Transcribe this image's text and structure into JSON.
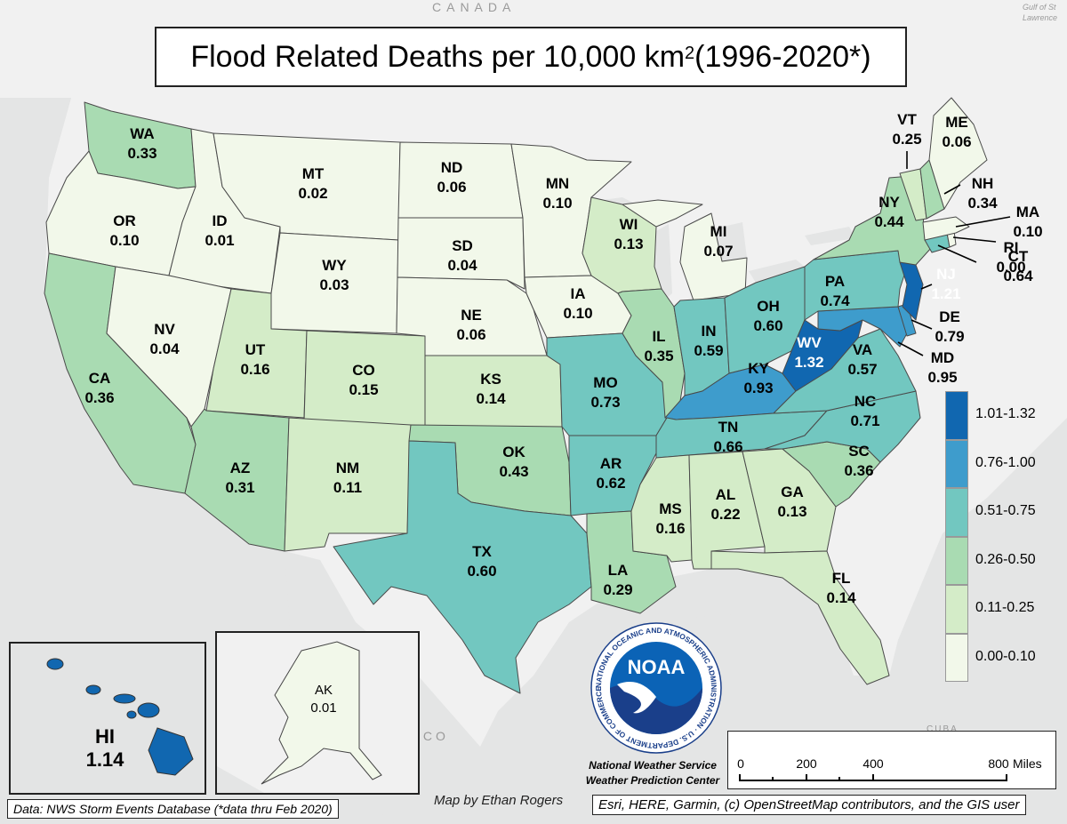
{
  "title": {
    "main": "Flood Related Deaths per 10,000 km",
    "superscript": "2",
    "period": " (1996-2020*)"
  },
  "background_labels": {
    "canada": "CANADA",
    "mexico_fragment": "ICO",
    "cuba": "CUBA",
    "gulf_st_lawrence": "Gulf of St Lawrence"
  },
  "colors": {
    "class_0": "#f2f8ea",
    "class_1": "#d4ecc8",
    "class_2": "#a9dbb2",
    "class_3": "#72c7c0",
    "class_4": "#3e9ccc",
    "class_5": "#1167b0",
    "land_bg": "#f5f5f5",
    "water_bg": "#e4e5e5"
  },
  "legend": [
    {
      "label": "1.01-1.32",
      "color": "#1167b0"
    },
    {
      "label": "0.76-1.00",
      "color": "#3e9ccc"
    },
    {
      "label": "0.51-0.75",
      "color": "#72c7c0"
    },
    {
      "label": "0.26-0.50",
      "color": "#a9dbb2"
    },
    {
      "label": "0.11-0.25",
      "color": "#d4ecc8"
    },
    {
      "label": "0.00-0.10",
      "color": "#f2f8ea"
    }
  ],
  "states": [
    {
      "abbr": "WA",
      "value": "0.33"
    },
    {
      "abbr": "OR",
      "value": "0.10"
    },
    {
      "abbr": "CA",
      "value": "0.36"
    },
    {
      "abbr": "ID",
      "value": "0.01"
    },
    {
      "abbr": "NV",
      "value": "0.04"
    },
    {
      "abbr": "MT",
      "value": "0.02"
    },
    {
      "abbr": "WY",
      "value": "0.03"
    },
    {
      "abbr": "UT",
      "value": "0.16"
    },
    {
      "abbr": "AZ",
      "value": "0.31"
    },
    {
      "abbr": "CO",
      "value": "0.15"
    },
    {
      "abbr": "NM",
      "value": "0.11"
    },
    {
      "abbr": "ND",
      "value": "0.06"
    },
    {
      "abbr": "SD",
      "value": "0.04"
    },
    {
      "abbr": "NE",
      "value": "0.06"
    },
    {
      "abbr": "KS",
      "value": "0.14"
    },
    {
      "abbr": "OK",
      "value": "0.43"
    },
    {
      "abbr": "TX",
      "value": "0.60"
    },
    {
      "abbr": "MN",
      "value": "0.10"
    },
    {
      "abbr": "IA",
      "value": "0.10"
    },
    {
      "abbr": "MO",
      "value": "0.73"
    },
    {
      "abbr": "AR",
      "value": "0.62"
    },
    {
      "abbr": "LA",
      "value": "0.29"
    },
    {
      "abbr": "WI",
      "value": "0.13"
    },
    {
      "abbr": "IL",
      "value": "0.35"
    },
    {
      "abbr": "MI",
      "value": "0.07"
    },
    {
      "abbr": "IN",
      "value": "0.59"
    },
    {
      "abbr": "OH",
      "value": "0.60"
    },
    {
      "abbr": "KY",
      "value": "0.93"
    },
    {
      "abbr": "TN",
      "value": "0.66"
    },
    {
      "abbr": "MS",
      "value": "0.16"
    },
    {
      "abbr": "AL",
      "value": "0.22"
    },
    {
      "abbr": "GA",
      "value": "0.13"
    },
    {
      "abbr": "FL",
      "value": "0.14"
    },
    {
      "abbr": "SC",
      "value": "0.36"
    },
    {
      "abbr": "NC",
      "value": "0.71"
    },
    {
      "abbr": "VA",
      "value": "0.57"
    },
    {
      "abbr": "WV",
      "value": "1.32"
    },
    {
      "abbr": "MD",
      "value": "0.95"
    },
    {
      "abbr": "DE",
      "value": "0.79"
    },
    {
      "abbr": "PA",
      "value": "0.74"
    },
    {
      "abbr": "NJ",
      "value": "1.21"
    },
    {
      "abbr": "NY",
      "value": "0.44"
    },
    {
      "abbr": "CT",
      "value": "0.64"
    },
    {
      "abbr": "RI",
      "value": "0.00"
    },
    {
      "abbr": "MA",
      "value": "0.10"
    },
    {
      "abbr": "VT",
      "value": "0.25"
    },
    {
      "abbr": "NH",
      "value": "0.34"
    },
    {
      "abbr": "ME",
      "value": "0.06"
    },
    {
      "abbr": "HI",
      "value": "1.14"
    },
    {
      "abbr": "AK",
      "value": "0.01"
    }
  ],
  "noaa": {
    "logo_text": "NOAA",
    "ring_text": "NATIONAL OCEANIC AND ATMOSPHERIC ADMINISTRATION · U.S. DEPARTMENT OF COMMERCE",
    "line1": "National Weather Service",
    "line2": "Weather Prediction Center"
  },
  "scale": {
    "ticks": [
      "0",
      "200",
      "400",
      "800"
    ],
    "unit": "Miles"
  },
  "credits": {
    "data_source": "Data: NWS Storm Events Database (*data thru Feb 2020)",
    "author": "Map by Ethan Rogers",
    "basemap": "Esri, HERE, Garmin, (c) OpenStreetMap contributors, and the GIS user"
  }
}
